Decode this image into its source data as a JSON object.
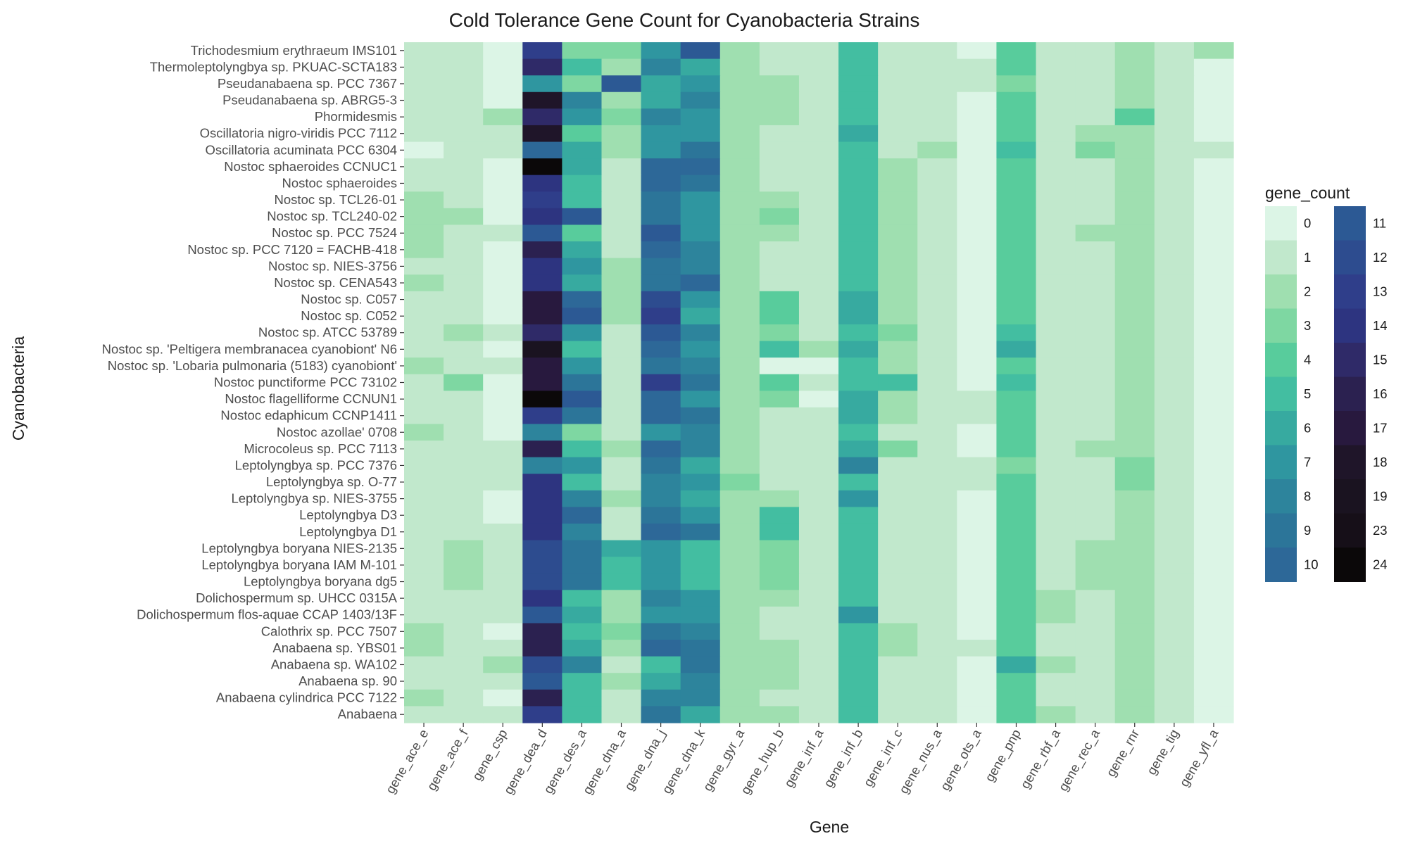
{
  "chart_data": {
    "type": "heatmap",
    "title": "Cold Tolerance Gene Count for Cyanobacteria Strains",
    "xlabel": "Gene",
    "ylabel": "Cyanobacteria",
    "legend_title": "gene_count",
    "legend_placement": "right",
    "grid": true,
    "x": [
      "gene_ace_e",
      "gene_ace_f",
      "gene_csp",
      "gene_dea_d",
      "gene_des_a",
      "gene_dna_a",
      "gene_dna_j",
      "gene_dna_k",
      "gene_gyr_a",
      "gene_hup_b",
      "gene_inf_a",
      "gene_inf_b",
      "gene_inf_c",
      "gene_nus_a",
      "gene_ots_a",
      "gene_pnp",
      "gene_rbf_a",
      "gene_rec_a",
      "gene_rnr",
      "gene_tig",
      "gene_yfl_a"
    ],
    "y": [
      "Trichodesmium erythraeum IMS101",
      "Thermoleptolyngbya sp. PKUAC-SCTA183",
      "Pseudanabaena sp. PCC 7367",
      "Pseudanabaena sp. ABRG5-3",
      "Phormidesmis",
      "Oscillatoria nigro-viridis PCC 7112",
      "Oscillatoria acuminata PCC 6304",
      "Nostoc sphaeroides CCNUC1",
      "Nostoc sphaeroides",
      "Nostoc sp. TCL26-01",
      "Nostoc sp. TCL240-02",
      "Nostoc sp. PCC 7524",
      "Nostoc sp. PCC 7120 = FACHB-418",
      "Nostoc sp. NIES-3756",
      "Nostoc sp. CENA543",
      "Nostoc sp. C057",
      "Nostoc sp. C052",
      "Nostoc sp. ATCC 53789",
      "Nostoc sp. 'Peltigera membranacea cyanobiont' N6",
      "Nostoc sp. 'Lobaria pulmonaria (5183) cyanobiont'",
      "Nostoc punctiforme PCC 73102",
      "Nostoc flagelliforme CCNUN1",
      "Nostoc edaphicum CCNP1411",
      "Nostoc azollae' 0708",
      "Microcoleus sp. PCC 7113",
      "Leptolyngbya sp. PCC 7376",
      "Leptolyngbya sp. O-77",
      "Leptolyngbya sp. NIES-3755",
      "Leptolyngbya D3",
      "Leptolyngbya D1",
      "Leptolyngbya boryana NIES-2135",
      "Leptolyngbya boryana IAM M-101",
      "Leptolyngbya boryana dg5",
      "Dolichospermum sp. UHCC 0315A",
      "Dolichospermum flos-aquae CCAP 1403/13F",
      "Calothrix sp. PCC 7507",
      "Anabaena sp. YBS01",
      "Anabaena sp. WA102",
      "Anabaena sp. 90",
      "Anabaena cylindrica PCC 7122",
      "Anabaena"
    ],
    "values": [
      [
        1,
        1,
        0,
        13,
        3,
        3,
        7,
        11,
        2,
        1,
        1,
        5,
        1,
        1,
        0,
        4,
        1,
        1,
        2,
        1,
        2
      ],
      [
        1,
        1,
        0,
        15,
        5,
        2,
        8,
        6,
        2,
        1,
        1,
        5,
        1,
        1,
        1,
        4,
        1,
        1,
        2,
        1,
        0
      ],
      [
        1,
        1,
        0,
        7,
        3,
        11,
        6,
        7,
        2,
        2,
        1,
        5,
        1,
        1,
        1,
        3,
        1,
        1,
        2,
        1,
        0
      ],
      [
        1,
        1,
        0,
        18,
        8,
        2,
        6,
        8,
        2,
        2,
        1,
        5,
        1,
        1,
        0,
        4,
        1,
        1,
        2,
        1,
        0
      ],
      [
        1,
        1,
        2,
        15,
        7,
        3,
        8,
        7,
        2,
        2,
        1,
        5,
        1,
        1,
        0,
        4,
        1,
        1,
        4,
        1,
        0
      ],
      [
        1,
        1,
        1,
        18,
        4,
        2,
        7,
        7,
        2,
        1,
        1,
        6,
        1,
        1,
        0,
        4,
        1,
        2,
        2,
        1,
        0
      ],
      [
        0,
        1,
        1,
        10,
        6,
        2,
        7,
        9,
        2,
        1,
        1,
        5,
        1,
        2,
        0,
        5,
        1,
        3,
        2,
        1,
        1
      ],
      [
        1,
        1,
        0,
        24,
        6,
        1,
        10,
        10,
        2,
        1,
        1,
        5,
        2,
        1,
        0,
        4,
        1,
        1,
        2,
        1,
        0
      ],
      [
        1,
        1,
        0,
        14,
        5,
        1,
        10,
        9,
        2,
        1,
        1,
        5,
        2,
        1,
        0,
        4,
        1,
        1,
        2,
        1,
        0
      ],
      [
        2,
        1,
        0,
        13,
        5,
        1,
        9,
        7,
        2,
        2,
        1,
        5,
        2,
        1,
        0,
        4,
        1,
        1,
        2,
        1,
        0
      ],
      [
        2,
        2,
        0,
        14,
        11,
        1,
        9,
        7,
        2,
        3,
        1,
        5,
        2,
        1,
        0,
        4,
        1,
        1,
        2,
        1,
        0
      ],
      [
        2,
        1,
        1,
        11,
        4,
        1,
        11,
        7,
        2,
        2,
        1,
        5,
        2,
        1,
        0,
        4,
        1,
        2,
        2,
        1,
        0
      ],
      [
        2,
        1,
        0,
        16,
        6,
        1,
        10,
        8,
        2,
        1,
        1,
        5,
        2,
        1,
        0,
        4,
        1,
        1,
        2,
        1,
        0
      ],
      [
        1,
        1,
        0,
        14,
        7,
        2,
        9,
        8,
        2,
        1,
        1,
        5,
        2,
        1,
        0,
        4,
        1,
        1,
        2,
        1,
        0
      ],
      [
        2,
        1,
        0,
        14,
        6,
        2,
        9,
        10,
        2,
        1,
        1,
        5,
        2,
        1,
        0,
        4,
        1,
        1,
        2,
        1,
        0
      ],
      [
        1,
        1,
        0,
        17,
        10,
        2,
        12,
        7,
        2,
        4,
        1,
        6,
        2,
        1,
        0,
        4,
        1,
        1,
        2,
        1,
        0
      ],
      [
        1,
        1,
        0,
        17,
        11,
        2,
        13,
        6,
        2,
        4,
        1,
        6,
        2,
        1,
        0,
        4,
        1,
        1,
        2,
        1,
        0
      ],
      [
        1,
        2,
        1,
        15,
        7,
        1,
        11,
        8,
        2,
        3,
        1,
        5,
        3,
        1,
        0,
        5,
        1,
        1,
        2,
        1,
        0
      ],
      [
        1,
        1,
        0,
        19,
        5,
        1,
        10,
        7,
        2,
        5,
        2,
        6,
        2,
        1,
        0,
        6,
        1,
        1,
        2,
        1,
        0
      ],
      [
        2,
        1,
        1,
        17,
        7,
        1,
        9,
        8,
        2,
        0,
        0,
        5,
        2,
        1,
        0,
        4,
        1,
        1,
        2,
        1,
        0
      ],
      [
        1,
        3,
        0,
        17,
        9,
        1,
        13,
        9,
        2,
        4,
        1,
        5,
        5,
        1,
        0,
        5,
        1,
        1,
        2,
        1,
        0
      ],
      [
        1,
        1,
        0,
        24,
        11,
        1,
        10,
        7,
        2,
        3,
        0,
        6,
        2,
        1,
        1,
        4,
        1,
        1,
        2,
        1,
        0
      ],
      [
        1,
        1,
        0,
        13,
        9,
        1,
        10,
        9,
        2,
        1,
        1,
        6,
        2,
        1,
        1,
        4,
        1,
        1,
        2,
        1,
        0
      ],
      [
        2,
        1,
        0,
        8,
        3,
        1,
        7,
        8,
        2,
        1,
        1,
        5,
        1,
        1,
        0,
        4,
        1,
        1,
        2,
        1,
        0
      ],
      [
        1,
        1,
        1,
        16,
        5,
        2,
        10,
        8,
        2,
        1,
        1,
        6,
        3,
        1,
        0,
        4,
        1,
        2,
        2,
        1,
        0
      ],
      [
        1,
        1,
        1,
        8,
        7,
        1,
        9,
        6,
        2,
        1,
        1,
        8,
        1,
        1,
        1,
        3,
        1,
        1,
        3,
        1,
        0
      ],
      [
        1,
        1,
        1,
        14,
        5,
        1,
        8,
        7,
        3,
        1,
        1,
        5,
        1,
        1,
        1,
        4,
        1,
        1,
        3,
        1,
        0
      ],
      [
        1,
        1,
        0,
        14,
        8,
        2,
        8,
        6,
        2,
        2,
        1,
        7,
        1,
        1,
        0,
        4,
        1,
        1,
        2,
        1,
        0
      ],
      [
        1,
        1,
        0,
        14,
        10,
        1,
        9,
        7,
        2,
        5,
        1,
        5,
        1,
        1,
        0,
        4,
        1,
        1,
        2,
        1,
        0
      ],
      [
        1,
        1,
        1,
        14,
        8,
        1,
        10,
        9,
        2,
        5,
        1,
        5,
        1,
        1,
        0,
        4,
        1,
        1,
        2,
        1,
        0
      ],
      [
        1,
        2,
        1,
        12,
        9,
        6,
        7,
        5,
        2,
        3,
        1,
        5,
        1,
        1,
        0,
        4,
        1,
        2,
        2,
        1,
        0
      ],
      [
        1,
        2,
        1,
        12,
        9,
        5,
        7,
        5,
        2,
        3,
        1,
        5,
        1,
        1,
        0,
        4,
        1,
        2,
        2,
        1,
        0
      ],
      [
        1,
        2,
        1,
        12,
        9,
        5,
        7,
        5,
        2,
        3,
        1,
        5,
        1,
        1,
        0,
        4,
        1,
        2,
        2,
        1,
        0
      ],
      [
        1,
        1,
        1,
        14,
        5,
        2,
        8,
        7,
        2,
        2,
        1,
        5,
        1,
        1,
        0,
        4,
        2,
        1,
        2,
        1,
        0
      ],
      [
        1,
        1,
        1,
        11,
        6,
        2,
        7,
        7,
        2,
        1,
        1,
        7,
        1,
        1,
        0,
        4,
        2,
        1,
        2,
        1,
        0
      ],
      [
        2,
        1,
        0,
        16,
        5,
        3,
        9,
        8,
        2,
        1,
        1,
        5,
        2,
        1,
        0,
        4,
        1,
        1,
        2,
        1,
        0
      ],
      [
        2,
        1,
        1,
        16,
        6,
        2,
        10,
        9,
        2,
        2,
        1,
        5,
        2,
        1,
        1,
        4,
        1,
        1,
        2,
        1,
        0
      ],
      [
        1,
        1,
        2,
        12,
        8,
        1,
        5,
        9,
        2,
        2,
        1,
        5,
        1,
        1,
        0,
        6,
        2,
        1,
        2,
        1,
        0
      ],
      [
        1,
        1,
        1,
        11,
        5,
        2,
        6,
        8,
        2,
        2,
        1,
        5,
        1,
        1,
        0,
        4,
        1,
        1,
        2,
        1,
        0
      ],
      [
        2,
        1,
        0,
        16,
        5,
        1,
        8,
        8,
        2,
        1,
        1,
        5,
        1,
        1,
        0,
        4,
        1,
        1,
        2,
        1,
        0
      ],
      [
        1,
        1,
        1,
        13,
        5,
        1,
        9,
        6,
        2,
        2,
        1,
        5,
        1,
        1,
        0,
        4,
        2,
        1,
        2,
        1,
        0
      ]
    ],
    "legend": {
      "values": [
        0,
        1,
        2,
        3,
        4,
        5,
        6,
        7,
        8,
        9,
        10,
        11,
        12,
        13,
        14,
        15,
        16,
        17,
        18,
        19,
        23,
        24
      ],
      "colors": [
        "#dcf5e6",
        "#c1e8cc",
        "#9fdfb0",
        "#7ed7a2",
        "#58cc9c",
        "#43bea1",
        "#37aaa0",
        "#2f96a0",
        "#2d849c",
        "#2c7599",
        "#2d6898",
        "#2c5994",
        "#2d4c8f",
        "#2f3e8a",
        "#2d3480",
        "#2f2a68",
        "#2b2150",
        "#28193e",
        "#1f1529",
        "#1a1320",
        "#160f18",
        "#0b0809"
      ]
    }
  }
}
